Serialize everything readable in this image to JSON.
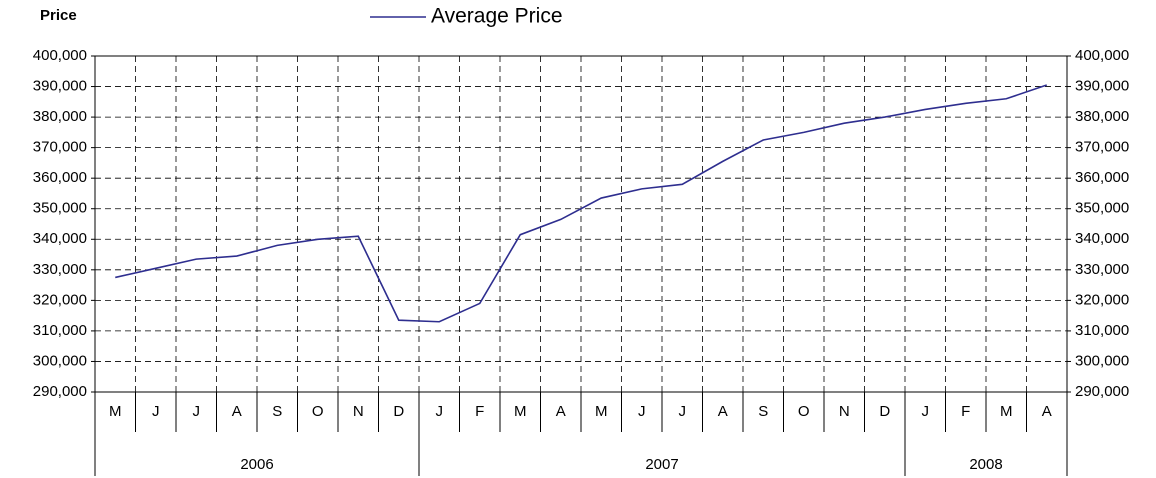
{
  "chart_data": {
    "type": "line",
    "y_axis_label": "Price",
    "groups": [
      {
        "label": "2006",
        "categories": [
          "M",
          "J",
          "J",
          "A",
          "S",
          "O",
          "N",
          "D"
        ]
      },
      {
        "label": "2007",
        "categories": [
          "J",
          "F",
          "M",
          "A",
          "M",
          "J",
          "J",
          "A",
          "S",
          "O",
          "N",
          "D"
        ]
      },
      {
        "label": "2008",
        "categories": [
          "J",
          "F",
          "M",
          "A"
        ]
      }
    ],
    "series": [
      {
        "name": "Average Price",
        "color": "#2e2e8f",
        "values": [
          327500,
          330500,
          333500,
          334500,
          338000,
          340000,
          341000,
          313500,
          313000,
          319000,
          341500,
          346500,
          353500,
          356500,
          358000,
          365500,
          372500,
          375000,
          378000,
          380000,
          382500,
          384500,
          386000,
          390500
        ]
      }
    ],
    "ylim": [
      290000,
      400000
    ],
    "yticks": [
      {
        "value": 290000,
        "label": "290,000"
      },
      {
        "value": 300000,
        "label": "300,000"
      },
      {
        "value": 310000,
        "label": "310,000"
      },
      {
        "value": 320000,
        "label": "320,000"
      },
      {
        "value": 330000,
        "label": "330,000"
      },
      {
        "value": 340000,
        "label": "340,000"
      },
      {
        "value": 350000,
        "label": "350,000"
      },
      {
        "value": 360000,
        "label": "360,000"
      },
      {
        "value": 370000,
        "label": "370,000"
      },
      {
        "value": 380000,
        "label": "380,000"
      },
      {
        "value": 390000,
        "label": "390,000"
      },
      {
        "value": 400000,
        "label": "400,000"
      }
    ],
    "y2lim": [
      290000,
      400000
    ],
    "y2ticks": [
      {
        "value": 290000,
        "label": "290,000"
      },
      {
        "value": 300000,
        "label": "300,000"
      },
      {
        "value": 310000,
        "label": "310,000"
      },
      {
        "value": 320000,
        "label": "320,000"
      },
      {
        "value": 330000,
        "label": "330,000"
      },
      {
        "value": 340000,
        "label": "340,000"
      },
      {
        "value": 350000,
        "label": "350,000"
      },
      {
        "value": 360000,
        "label": "360,000"
      },
      {
        "value": 370000,
        "label": "370,000"
      },
      {
        "value": 380000,
        "label": "380,000"
      },
      {
        "value": 390000,
        "label": "390,000"
      },
      {
        "value": 400000,
        "label": "400,000"
      }
    ],
    "grid": true
  }
}
